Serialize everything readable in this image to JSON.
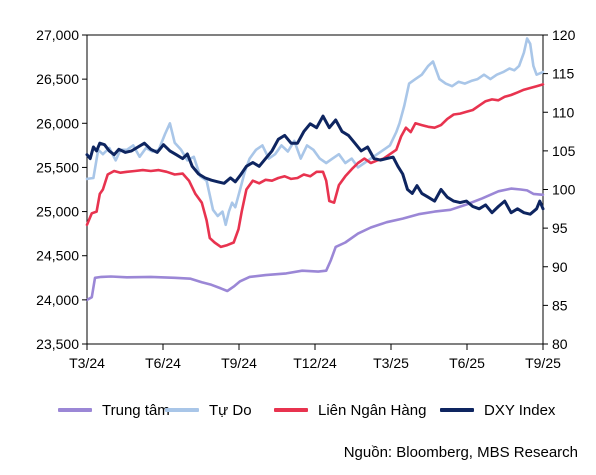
{
  "chart_data": {
    "type": "line",
    "x_ticks": [
      "T3/24",
      "T6/24",
      "T9/24",
      "T12/24",
      "T3/25",
      "T6/25",
      "T9/25"
    ],
    "y_left": {
      "ticks": [
        "23,500",
        "24,000",
        "24,500",
        "25,000",
        "25,500",
        "26,000",
        "26,500",
        "27,000"
      ],
      "ylim": [
        23500,
        27000
      ]
    },
    "y_right": {
      "ticks": [
        "80",
        "85",
        "90",
        "95",
        "100",
        "105",
        "110",
        "115",
        "120"
      ],
      "ylim": [
        80,
        120
      ]
    },
    "grid": false,
    "legend_position": "bottom",
    "series": [
      {
        "name": "Trung tâm",
        "axis": "left",
        "color": "#9B87D6",
        "values": [
          [
            0,
            24000
          ],
          [
            3,
            24030
          ],
          [
            5,
            24250
          ],
          [
            9,
            24260
          ],
          [
            15,
            24265
          ],
          [
            25,
            24255
          ],
          [
            40,
            24260
          ],
          [
            55,
            24250
          ],
          [
            65,
            24240
          ],
          [
            72,
            24200
          ],
          [
            78,
            24170
          ],
          [
            84,
            24130
          ],
          [
            88,
            24100
          ],
          [
            92,
            24150
          ],
          [
            96,
            24210
          ],
          [
            102,
            24260
          ],
          [
            112,
            24280
          ],
          [
            125,
            24300
          ],
          [
            135,
            24330
          ],
          [
            145,
            24320
          ],
          [
            150,
            24330
          ],
          [
            153,
            24450
          ],
          [
            156,
            24600
          ],
          [
            162,
            24650
          ],
          [
            170,
            24750
          ],
          [
            178,
            24820
          ],
          [
            188,
            24880
          ],
          [
            198,
            24920
          ],
          [
            208,
            24970
          ],
          [
            218,
            25000
          ],
          [
            228,
            25020
          ],
          [
            238,
            25080
          ],
          [
            248,
            25150
          ],
          [
            258,
            25230
          ],
          [
            266,
            25260
          ],
          [
            272,
            25250
          ],
          [
            276,
            25240
          ],
          [
            280,
            25200
          ],
          [
            286,
            25190
          ]
        ]
      },
      {
        "name": "Tự Do",
        "axis": "left",
        "color": "#A9C6E8",
        "values": [
          [
            0,
            25370
          ],
          [
            4,
            25380
          ],
          [
            7,
            25700
          ],
          [
            10,
            25650
          ],
          [
            14,
            25720
          ],
          [
            18,
            25580
          ],
          [
            21,
            25700
          ],
          [
            25,
            25700
          ],
          [
            29,
            25750
          ],
          [
            33,
            25620
          ],
          [
            37,
            25720
          ],
          [
            41,
            25680
          ],
          [
            45,
            25700
          ],
          [
            49,
            25880
          ],
          [
            52,
            26000
          ],
          [
            55,
            25780
          ],
          [
            59,
            25700
          ],
          [
            63,
            25580
          ],
          [
            67,
            25620
          ],
          [
            71,
            25400
          ],
          [
            75,
            25350
          ],
          [
            79,
            25020
          ],
          [
            82,
            24950
          ],
          [
            85,
            25000
          ],
          [
            87,
            24850
          ],
          [
            89,
            25000
          ],
          [
            91,
            25100
          ],
          [
            93,
            25050
          ],
          [
            96,
            25250
          ],
          [
            99,
            25450
          ],
          [
            102,
            25600
          ],
          [
            106,
            25700
          ],
          [
            110,
            25750
          ],
          [
            114,
            25600
          ],
          [
            118,
            25650
          ],
          [
            122,
            25750
          ],
          [
            126,
            25680
          ],
          [
            130,
            25800
          ],
          [
            134,
            25600
          ],
          [
            138,
            25750
          ],
          [
            142,
            25700
          ],
          [
            146,
            25600
          ],
          [
            150,
            25550
          ],
          [
            154,
            25600
          ],
          [
            158,
            25650
          ],
          [
            162,
            25550
          ],
          [
            166,
            25600
          ],
          [
            170,
            25500
          ],
          [
            174,
            25550
          ],
          [
            178,
            25600
          ],
          [
            182,
            25650
          ],
          [
            186,
            25700
          ],
          [
            190,
            25750
          ],
          [
            194,
            25900
          ],
          [
            196,
            26000
          ],
          [
            199,
            26200
          ],
          [
            202,
            26450
          ],
          [
            206,
            26500
          ],
          [
            210,
            26550
          ],
          [
            214,
            26650
          ],
          [
            217,
            26700
          ],
          [
            221,
            26500
          ],
          [
            225,
            26450
          ],
          [
            229,
            26420
          ],
          [
            233,
            26470
          ],
          [
            237,
            26450
          ],
          [
            241,
            26480
          ],
          [
            245,
            26500
          ],
          [
            249,
            26550
          ],
          [
            253,
            26500
          ],
          [
            257,
            26550
          ],
          [
            261,
            26580
          ],
          [
            265,
            26620
          ],
          [
            268,
            26600
          ],
          [
            271,
            26650
          ],
          [
            274,
            26800
          ],
          [
            276,
            26960
          ],
          [
            278,
            26900
          ],
          [
            280,
            26650
          ],
          [
            282,
            26550
          ],
          [
            286,
            26580
          ]
        ]
      },
      {
        "name": "Liên Ngân Hàng",
        "axis": "left",
        "color": "#E8334F",
        "values": [
          [
            0,
            24850
          ],
          [
            3,
            24980
          ],
          [
            6,
            25000
          ],
          [
            8,
            25200
          ],
          [
            10,
            25250
          ],
          [
            13,
            25420
          ],
          [
            17,
            25460
          ],
          [
            21,
            25440
          ],
          [
            25,
            25450
          ],
          [
            30,
            25460
          ],
          [
            35,
            25470
          ],
          [
            40,
            25460
          ],
          [
            45,
            25470
          ],
          [
            50,
            25450
          ],
          [
            55,
            25420
          ],
          [
            60,
            25430
          ],
          [
            64,
            25350
          ],
          [
            68,
            25200
          ],
          [
            72,
            25100
          ],
          [
            75,
            24900
          ],
          [
            77,
            24700
          ],
          [
            80,
            24650
          ],
          [
            84,
            24600
          ],
          [
            88,
            24620
          ],
          [
            92,
            24650
          ],
          [
            95,
            24800
          ],
          [
            97,
            25000
          ],
          [
            100,
            25250
          ],
          [
            104,
            25350
          ],
          [
            108,
            25320
          ],
          [
            112,
            25360
          ],
          [
            116,
            25350
          ],
          [
            120,
            25380
          ],
          [
            124,
            25400
          ],
          [
            128,
            25370
          ],
          [
            132,
            25380
          ],
          [
            136,
            25420
          ],
          [
            140,
            25400
          ],
          [
            144,
            25450
          ],
          [
            148,
            25450
          ],
          [
            150,
            25350
          ],
          [
            152,
            25120
          ],
          [
            155,
            25100
          ],
          [
            158,
            25300
          ],
          [
            162,
            25400
          ],
          [
            166,
            25480
          ],
          [
            170,
            25550
          ],
          [
            174,
            25600
          ],
          [
            178,
            25550
          ],
          [
            182,
            25580
          ],
          [
            186,
            25600
          ],
          [
            190,
            25650
          ],
          [
            194,
            25700
          ],
          [
            197,
            25850
          ],
          [
            200,
            25950
          ],
          [
            203,
            25900
          ],
          [
            206,
            26000
          ],
          [
            210,
            25980
          ],
          [
            214,
            25960
          ],
          [
            218,
            25950
          ],
          [
            222,
            25980
          ],
          [
            226,
            26050
          ],
          [
            230,
            26100
          ],
          [
            234,
            26110
          ],
          [
            238,
            26130
          ],
          [
            242,
            26150
          ],
          [
            246,
            26200
          ],
          [
            250,
            26250
          ],
          [
            254,
            26270
          ],
          [
            258,
            26260
          ],
          [
            262,
            26300
          ],
          [
            266,
            26320
          ],
          [
            270,
            26350
          ],
          [
            274,
            26380
          ],
          [
            278,
            26400
          ],
          [
            282,
            26420
          ],
          [
            286,
            26440
          ]
        ]
      },
      {
        "name": "DXY Index",
        "axis": "right",
        "color": "#0E2560",
        "values": [
          [
            0,
            104.5
          ],
          [
            2,
            104.0
          ],
          [
            4,
            105.5
          ],
          [
            6,
            105.0
          ],
          [
            8,
            106.0
          ],
          [
            11,
            105.8
          ],
          [
            14,
            105.0
          ],
          [
            17,
            104.5
          ],
          [
            20,
            105.2
          ],
          [
            24,
            104.8
          ],
          [
            28,
            105.0
          ],
          [
            32,
            105.5
          ],
          [
            36,
            106.0
          ],
          [
            40,
            105.2
          ],
          [
            44,
            104.8
          ],
          [
            48,
            105.8
          ],
          [
            52,
            105.0
          ],
          [
            56,
            104.5
          ],
          [
            60,
            104.0
          ],
          [
            63,
            104.6
          ],
          [
            66,
            103.0
          ],
          [
            70,
            102.0
          ],
          [
            74,
            101.5
          ],
          [
            78,
            101.2
          ],
          [
            82,
            101.0
          ],
          [
            86,
            100.8
          ],
          [
            90,
            101.5
          ],
          [
            93,
            101.0
          ],
          [
            96,
            101.8
          ],
          [
            100,
            103.0
          ],
          [
            104,
            103.5
          ],
          [
            108,
            103.0
          ],
          [
            112,
            104.0
          ],
          [
            116,
            105.0
          ],
          [
            120,
            106.5
          ],
          [
            124,
            107.0
          ],
          [
            128,
            106.0
          ],
          [
            132,
            106.0
          ],
          [
            136,
            107.5
          ],
          [
            140,
            108.5
          ],
          [
            144,
            108.0
          ],
          [
            148,
            109.5
          ],
          [
            152,
            108.0
          ],
          [
            156,
            109.0
          ],
          [
            160,
            107.5
          ],
          [
            164,
            107.0
          ],
          [
            168,
            106.0
          ],
          [
            172,
            105.0
          ],
          [
            176,
            105.5
          ],
          [
            180,
            104.0
          ],
          [
            184,
            103.8
          ],
          [
            188,
            104.0
          ],
          [
            192,
            104.2
          ],
          [
            195,
            103.0
          ],
          [
            198,
            102.0
          ],
          [
            201,
            100.0
          ],
          [
            204,
            99.5
          ],
          [
            207,
            100.5
          ],
          [
            210,
            99.5
          ],
          [
            214,
            99.0
          ],
          [
            218,
            98.5
          ],
          [
            222,
            100.0
          ],
          [
            226,
            99.0
          ],
          [
            230,
            98.5
          ],
          [
            234,
            98.3
          ],
          [
            238,
            98.5
          ],
          [
            242,
            97.8
          ],
          [
            246,
            97.5
          ],
          [
            250,
            98.0
          ],
          [
            254,
            97.0
          ],
          [
            258,
            97.8
          ],
          [
            262,
            98.5
          ],
          [
            266,
            97.0
          ],
          [
            270,
            97.5
          ],
          [
            274,
            97.0
          ],
          [
            278,
            96.8
          ],
          [
            282,
            97.5
          ],
          [
            284,
            98.5
          ],
          [
            286,
            97.5
          ]
        ]
      }
    ]
  },
  "legend": [
    {
      "label": "Trung tâm",
      "color": "#9B87D6"
    },
    {
      "label": "Tự Do",
      "color": "#A9C6E8"
    },
    {
      "label": "Liên Ngân Hàng",
      "color": "#E8334F"
    },
    {
      "label": "DXY Index",
      "color": "#0E2560"
    }
  ],
  "source": "Nguồn: Bloomberg, MBS Research"
}
